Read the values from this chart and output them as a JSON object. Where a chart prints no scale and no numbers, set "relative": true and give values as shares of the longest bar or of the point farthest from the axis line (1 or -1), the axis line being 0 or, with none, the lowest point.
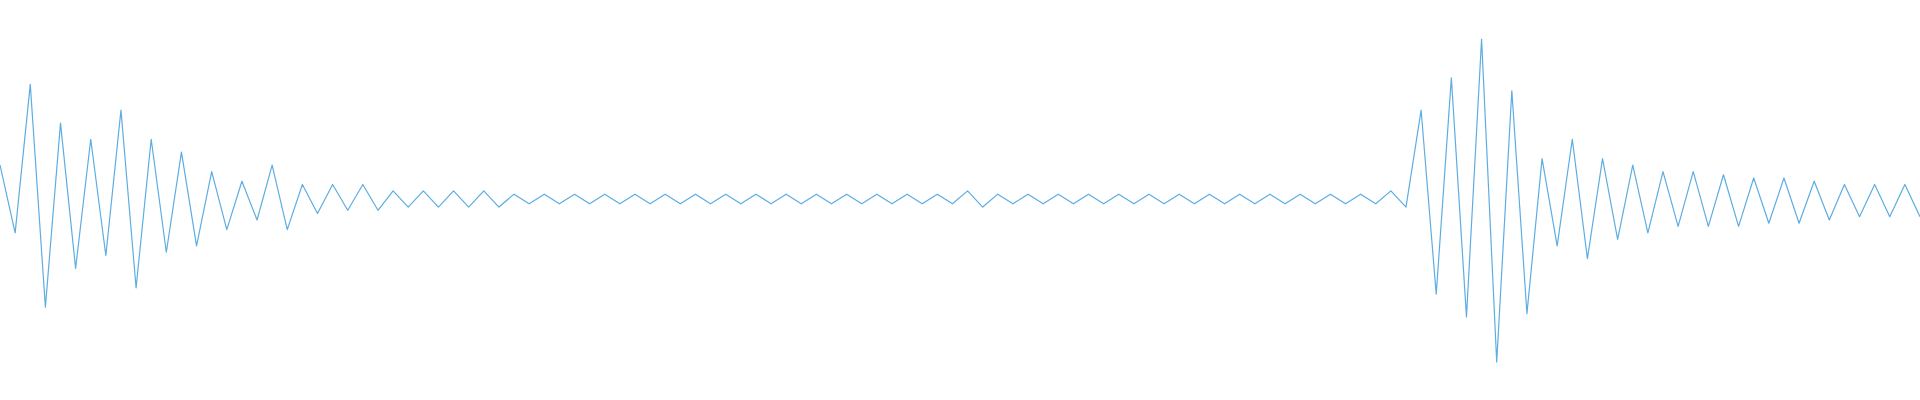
{
  "chart_data": {
    "type": "line",
    "relative": true,
    "categories": [
      null,
      null,
      null,
      null,
      null,
      null,
      null,
      null,
      null,
      null,
      null,
      null,
      null,
      null,
      null,
      null,
      null,
      null,
      null,
      null,
      null,
      null,
      null,
      null,
      null,
      null,
      null,
      null,
      null,
      null,
      null,
      null,
      null,
      null,
      null,
      null,
      null,
      null,
      null,
      null,
      null,
      null,
      null,
      null,
      null,
      null,
      null,
      null,
      null,
      null,
      null,
      null,
      null,
      null,
      null,
      null,
      null,
      null,
      null,
      null,
      null,
      null,
      null,
      null,
      null,
      null,
      null,
      null,
      null,
      null,
      null,
      null,
      null,
      null,
      null,
      null,
      null,
      null,
      null,
      null,
      null,
      null,
      null,
      null,
      null,
      null,
      null,
      null,
      null,
      null,
      null,
      null,
      null,
      null,
      null,
      null,
      null,
      null,
      null,
      null,
      null,
      null,
      null,
      null,
      null,
      null,
      null,
      null,
      null,
      null,
      null,
      null,
      null,
      null,
      null,
      null,
      null,
      null,
      null,
      null,
      null,
      null,
      null,
      null,
      null,
      null,
      null,
      null
    ],
    "series": [
      {
        "color": "#5dade2",
        "values": [
          0.61,
          0.4,
          0.86,
          0.17,
          0.74,
          0.29,
          0.69,
          0.33,
          0.78,
          0.23,
          0.69,
          0.34,
          0.65,
          0.36,
          0.59,
          0.41,
          0.56,
          0.44,
          0.61,
          0.41,
          0.55,
          0.46,
          0.55,
          0.47,
          0.55,
          0.47,
          0.53,
          0.48,
          0.53,
          0.48,
          0.53,
          0.48,
          0.53,
          0.48,
          0.52,
          0.49,
          0.52,
          0.49,
          0.52,
          0.49,
          0.52,
          0.49,
          0.52,
          0.49,
          0.52,
          0.49,
          0.52,
          0.49,
          0.52,
          0.49,
          0.52,
          0.49,
          0.52,
          0.49,
          0.52,
          0.49,
          0.52,
          0.49,
          0.52,
          0.49,
          0.52,
          0.49,
          0.52,
          0.49,
          0.53,
          0.48,
          0.52,
          0.49,
          0.52,
          0.49,
          0.52,
          0.49,
          0.52,
          0.49,
          0.52,
          0.49,
          0.52,
          0.49,
          0.52,
          0.49,
          0.52,
          0.49,
          0.52,
          0.49,
          0.52,
          0.49,
          0.52,
          0.49,
          0.52,
          0.49,
          0.52,
          0.49,
          0.53,
          0.48,
          0.78,
          0.21,
          0.88,
          0.14,
          1,
          0,
          0.84,
          0.15,
          0.63,
          0.36,
          0.69,
          0.32,
          0.63,
          0.38,
          0.61,
          0.4,
          0.59,
          0.42,
          0.59,
          0.42,
          0.58,
          0.42,
          0.57,
          0.43,
          0.57,
          0.43,
          0.56,
          0.44,
          0.55,
          0.45,
          0.55,
          0.45,
          0.55,
          0.45
        ]
      }
    ]
  }
}
